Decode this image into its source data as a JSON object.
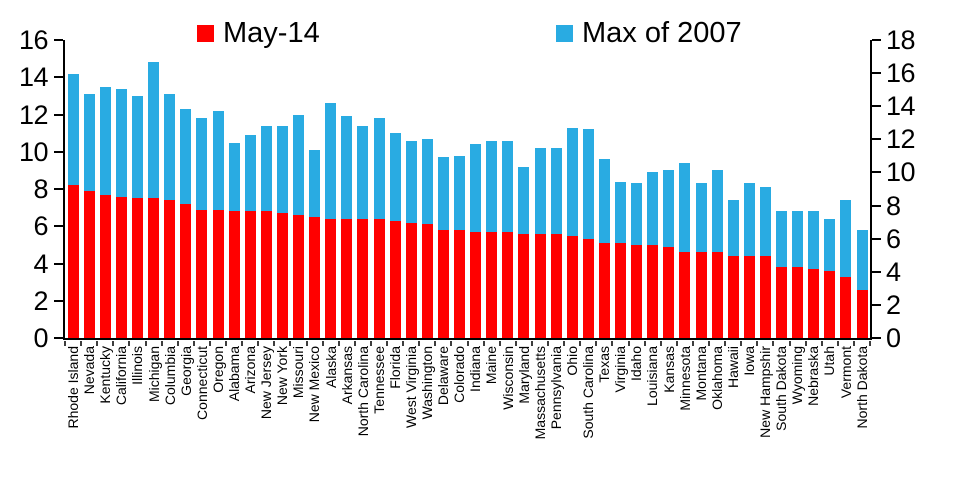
{
  "chart_data": {
    "type": "bar",
    "stacked": true,
    "title": "",
    "grid": false,
    "legend_position": "top",
    "background": "#ffffff",
    "axis_color": "#000000",
    "categories": [
      "Rhode Island",
      "Nevada",
      "Kentucky",
      "California",
      "Illinois",
      "Michigan",
      "Columbia",
      "Georgia",
      "Connecticut",
      "Oregon",
      "Alabama",
      "Arizona",
      "New Jersey",
      "New York",
      "Missouri",
      "New Mexico",
      "Alaska",
      "Arkansas",
      "North Carolina",
      "Tennessee",
      "Florida",
      "West Virginia",
      "Washington",
      "Delaware",
      "Colorado",
      "Indiana",
      "Maine",
      "Wisconsin",
      "Maryland",
      "Massachusetts",
      "Pennsylvania",
      "Ohio",
      "South Carolina",
      "Texas",
      "Virginia",
      "Idaho",
      "Louisiana",
      "Kansas",
      "Minnesota",
      "Montana",
      "Oklahoma",
      "Hawaii",
      "Iowa",
      "New Hampshir",
      "South Dakota",
      "Wyoming",
      "Nebraska",
      "Utah",
      "Vermont",
      "North Dakota"
    ],
    "series": [
      {
        "name": "May-14",
        "color": "#FF0000",
        "values": [
          8.2,
          7.9,
          7.7,
          7.6,
          7.5,
          7.5,
          7.4,
          7.2,
          6.9,
          6.9,
          6.8,
          6.8,
          6.8,
          6.7,
          6.6,
          6.5,
          6.4,
          6.4,
          6.4,
          6.4,
          6.3,
          6.2,
          6.1,
          5.8,
          5.8,
          5.7,
          5.7,
          5.7,
          5.6,
          5.6,
          5.6,
          5.5,
          5.3,
          5.1,
          5.1,
          5.0,
          5.0,
          4.9,
          4.6,
          4.6,
          4.6,
          4.4,
          4.4,
          4.4,
          3.8,
          3.8,
          3.7,
          3.6,
          3.3,
          2.6
        ]
      },
      {
        "name": "Max of 2007",
        "color": "#29ABE2",
        "values": [
          6.0,
          5.2,
          5.8,
          5.8,
          5.5,
          7.3,
          5.7,
          5.1,
          4.9,
          5.3,
          3.7,
          4.1,
          4.6,
          4.7,
          5.4,
          3.6,
          6.2,
          5.5,
          5.0,
          5.4,
          4.7,
          4.4,
          4.6,
          3.9,
          4.0,
          4.7,
          4.9,
          4.9,
          3.6,
          4.6,
          4.6,
          5.8,
          5.9,
          4.5,
          3.3,
          3.3,
          3.9,
          4.1,
          4.8,
          3.7,
          4.4,
          3.0,
          3.9,
          3.7,
          3.0,
          3.0,
          3.1,
          2.8,
          4.1,
          3.2
        ]
      }
    ],
    "left_axis": {
      "min": 0,
      "max": 16,
      "step": 2,
      "ticks": [
        "16",
        "14",
        "12",
        "10",
        "8",
        "6",
        "4",
        "2",
        "0"
      ]
    },
    "right_axis": {
      "min": 0,
      "max": 18,
      "step": 2,
      "ticks": [
        "18",
        "16",
        "14",
        "12",
        "10",
        "8",
        "6",
        "4",
        "2",
        "0"
      ]
    }
  }
}
